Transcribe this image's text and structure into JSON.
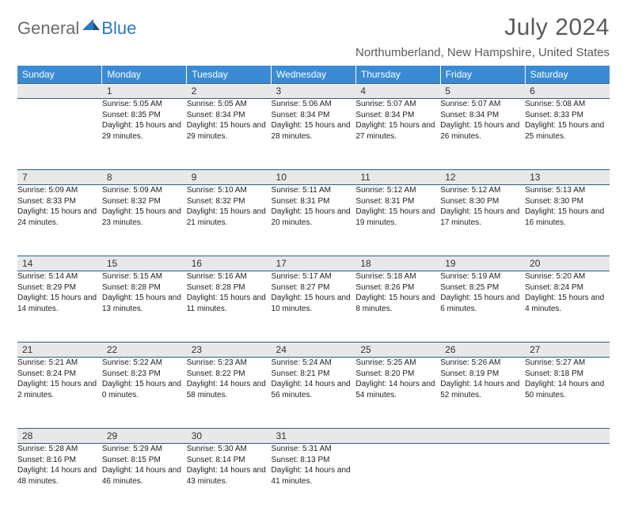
{
  "logo": {
    "general": "General",
    "blue": "Blue"
  },
  "title": "July 2024",
  "location": "Northumberland, New Hampshire, United States",
  "colors": {
    "header_bg": "#3b8bd4",
    "header_text": "#ffffff",
    "daynum_bg": "#e8e8e8",
    "border": "#2b5d8a",
    "logo_gray": "#6b6b6b",
    "logo_blue": "#2b79c2"
  },
  "day_headers": [
    "Sunday",
    "Monday",
    "Tuesday",
    "Wednesday",
    "Thursday",
    "Friday",
    "Saturday"
  ],
  "weeks": [
    {
      "nums": [
        "",
        "1",
        "2",
        "3",
        "4",
        "5",
        "6"
      ],
      "cells": [
        "",
        "Sunrise: 5:05 AM\nSunset: 8:35 PM\nDaylight: 15 hours and 29 minutes.",
        "Sunrise: 5:05 AM\nSunset: 8:34 PM\nDaylight: 15 hours and 29 minutes.",
        "Sunrise: 5:06 AM\nSunset: 8:34 PM\nDaylight: 15 hours and 28 minutes.",
        "Sunrise: 5:07 AM\nSunset: 8:34 PM\nDaylight: 15 hours and 27 minutes.",
        "Sunrise: 5:07 AM\nSunset: 8:34 PM\nDaylight: 15 hours and 26 minutes.",
        "Sunrise: 5:08 AM\nSunset: 8:33 PM\nDaylight: 15 hours and 25 minutes."
      ]
    },
    {
      "nums": [
        "7",
        "8",
        "9",
        "10",
        "11",
        "12",
        "13"
      ],
      "cells": [
        "Sunrise: 5:09 AM\nSunset: 8:33 PM\nDaylight: 15 hours and 24 minutes.",
        "Sunrise: 5:09 AM\nSunset: 8:32 PM\nDaylight: 15 hours and 23 minutes.",
        "Sunrise: 5:10 AM\nSunset: 8:32 PM\nDaylight: 15 hours and 21 minutes.",
        "Sunrise: 5:11 AM\nSunset: 8:31 PM\nDaylight: 15 hours and 20 minutes.",
        "Sunrise: 5:12 AM\nSunset: 8:31 PM\nDaylight: 15 hours and 19 minutes.",
        "Sunrise: 5:12 AM\nSunset: 8:30 PM\nDaylight: 15 hours and 17 minutes.",
        "Sunrise: 5:13 AM\nSunset: 8:30 PM\nDaylight: 15 hours and 16 minutes."
      ]
    },
    {
      "nums": [
        "14",
        "15",
        "16",
        "17",
        "18",
        "19",
        "20"
      ],
      "cells": [
        "Sunrise: 5:14 AM\nSunset: 8:29 PM\nDaylight: 15 hours and 14 minutes.",
        "Sunrise: 5:15 AM\nSunset: 8:28 PM\nDaylight: 15 hours and 13 minutes.",
        "Sunrise: 5:16 AM\nSunset: 8:28 PM\nDaylight: 15 hours and 11 minutes.",
        "Sunrise: 5:17 AM\nSunset: 8:27 PM\nDaylight: 15 hours and 10 minutes.",
        "Sunrise: 5:18 AM\nSunset: 8:26 PM\nDaylight: 15 hours and 8 minutes.",
        "Sunrise: 5:19 AM\nSunset: 8:25 PM\nDaylight: 15 hours and 6 minutes.",
        "Sunrise: 5:20 AM\nSunset: 8:24 PM\nDaylight: 15 hours and 4 minutes."
      ]
    },
    {
      "nums": [
        "21",
        "22",
        "23",
        "24",
        "25",
        "26",
        "27"
      ],
      "cells": [
        "Sunrise: 5:21 AM\nSunset: 8:24 PM\nDaylight: 15 hours and 2 minutes.",
        "Sunrise: 5:22 AM\nSunset: 8:23 PM\nDaylight: 15 hours and 0 minutes.",
        "Sunrise: 5:23 AM\nSunset: 8:22 PM\nDaylight: 14 hours and 58 minutes.",
        "Sunrise: 5:24 AM\nSunset: 8:21 PM\nDaylight: 14 hours and 56 minutes.",
        "Sunrise: 5:25 AM\nSunset: 8:20 PM\nDaylight: 14 hours and 54 minutes.",
        "Sunrise: 5:26 AM\nSunset: 8:19 PM\nDaylight: 14 hours and 52 minutes.",
        "Sunrise: 5:27 AM\nSunset: 8:18 PM\nDaylight: 14 hours and 50 minutes."
      ]
    },
    {
      "nums": [
        "28",
        "29",
        "30",
        "31",
        "",
        "",
        ""
      ],
      "cells": [
        "Sunrise: 5:28 AM\nSunset: 8:16 PM\nDaylight: 14 hours and 48 minutes.",
        "Sunrise: 5:29 AM\nSunset: 8:15 PM\nDaylight: 14 hours and 46 minutes.",
        "Sunrise: 5:30 AM\nSunset: 8:14 PM\nDaylight: 14 hours and 43 minutes.",
        "Sunrise: 5:31 AM\nSunset: 8:13 PM\nDaylight: 14 hours and 41 minutes.",
        "",
        "",
        ""
      ]
    }
  ]
}
